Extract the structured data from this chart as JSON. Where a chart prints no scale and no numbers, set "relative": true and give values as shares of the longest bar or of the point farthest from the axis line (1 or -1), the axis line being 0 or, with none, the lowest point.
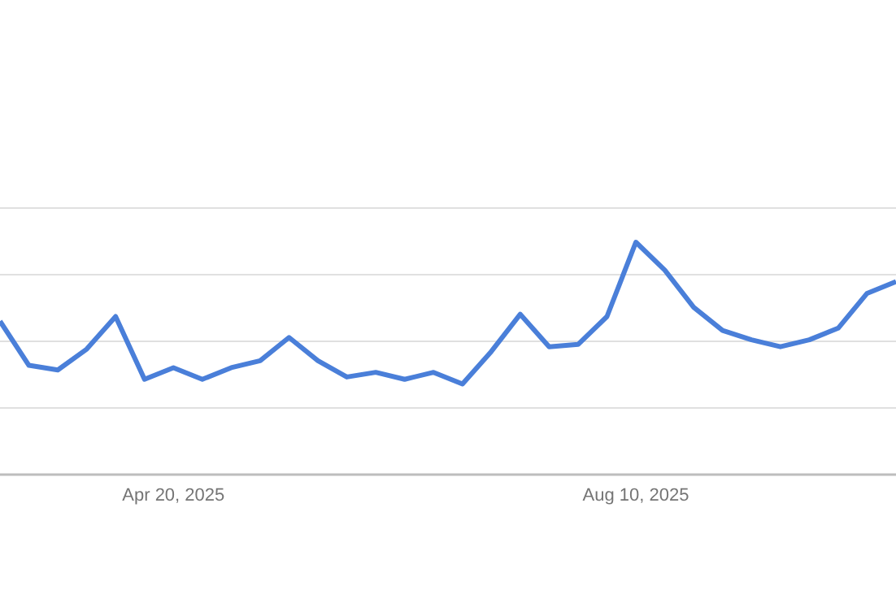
{
  "chart_data": {
    "type": "line",
    "relative": true,
    "grid": "y",
    "categories": [
      null,
      null,
      null,
      null,
      null,
      null,
      "Apr 20, 2025",
      null,
      null,
      null,
      null,
      null,
      null,
      null,
      null,
      null,
      null,
      null,
      null,
      null,
      null,
      null,
      "Aug 10, 2025",
      null,
      null,
      null,
      null,
      null,
      null,
      null,
      null,
      null
    ],
    "series": [
      {
        "color": "#4a7fd9",
        "values": [
          0.66,
          0.47,
          0.45,
          0.54,
          0.68,
          0.41,
          0.46,
          0.41,
          0.46,
          0.49,
          0.59,
          0.49,
          0.42,
          0.44,
          0.41,
          0.44,
          0.39,
          0.53,
          0.69,
          0.55,
          0.56,
          0.68,
          1,
          0.88,
          0.72,
          0.62,
          0.58,
          0.55,
          0.58,
          0.63,
          0.78,
          0.83
        ]
      }
    ],
    "marker": "none",
    "line_style": "solid"
  }
}
